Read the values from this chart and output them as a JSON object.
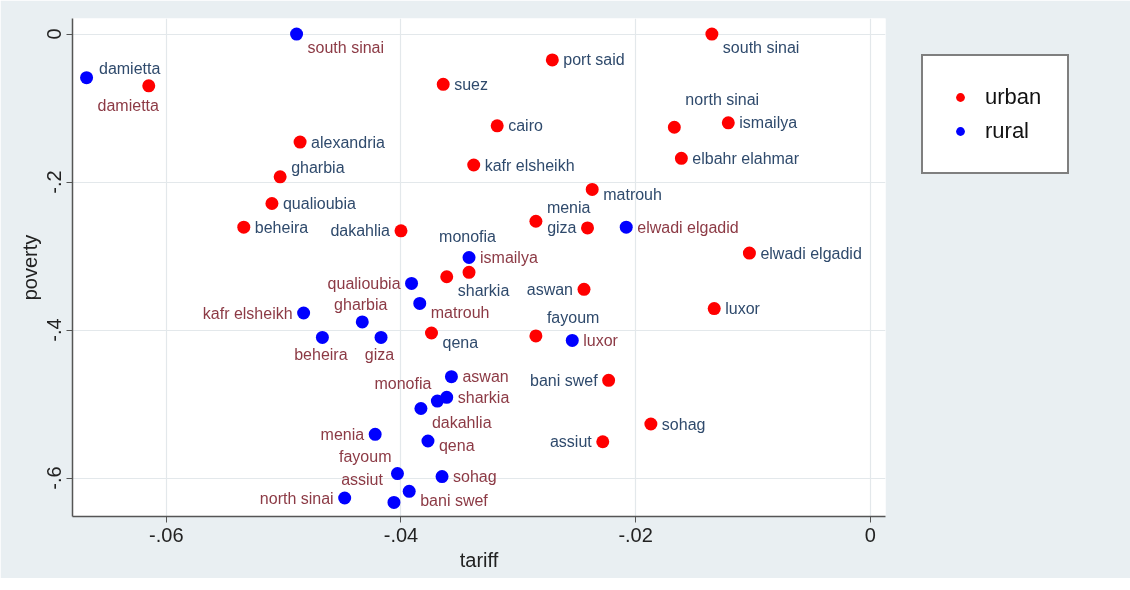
{
  "chart_data": {
    "type": "scatter",
    "xlabel": "tariff",
    "ylabel": "poverty",
    "xlim": [
      -0.068,
      0.0013
    ],
    "ylim": [
      -0.652,
      0.021
    ],
    "xticks": [
      {
        "value": -0.06,
        "label": "-.06"
      },
      {
        "value": -0.04,
        "label": "-.04"
      },
      {
        "value": -0.02,
        "label": "-.02"
      },
      0
    ],
    "yticks": [
      {
        "value": -0.6,
        "label": "-.6"
      },
      {
        "value": -0.4,
        "label": "-.4"
      },
      {
        "value": -0.2,
        "label": "-.2"
      },
      0
    ],
    "grid": true,
    "legend": "right",
    "marker": "circle",
    "series": [
      {
        "name": "urban",
        "color": "#ff0000",
        "x": [
          -0.0318,
          -0.0486,
          -0.0271,
          -0.0364,
          -0.0615,
          -0.04,
          -0.0361,
          -0.051,
          -0.0338,
          -0.0503,
          -0.0342,
          -0.0534,
          -0.0121,
          -0.0241,
          -0.0223,
          -0.0285,
          -0.0285,
          -0.0228,
          -0.0187,
          -0.0374,
          -0.0244,
          -0.0133,
          -0.0161,
          -0.0103,
          -0.0237,
          -0.0167,
          -0.0135
        ],
        "values": [
          -0.124,
          -0.146,
          -0.035,
          -0.068,
          -0.07,
          -0.266,
          -0.328,
          -0.229,
          -0.177,
          -0.193,
          -0.322,
          -0.261,
          -0.12,
          -0.262,
          -0.468,
          -0.408,
          -0.253,
          -0.551,
          -0.527,
          -0.404,
          -0.345,
          -0.371,
          -0.168,
          -0.296,
          -0.21,
          -0.126,
          0.0
        ],
        "value_labels": [
          "cairo",
          "alexandria",
          "port said",
          "suez",
          "damietta",
          "dakahlia",
          "sharkia",
          "qualioubia",
          "kafr elsheikh",
          "gharbia",
          "monofia",
          "beheira",
          "ismailya",
          "giza",
          "bani swef",
          "fayoum",
          "menia",
          "assiut",
          "sohag",
          "qena",
          "aswan",
          "luxor",
          "elbahr elahmar",
          "elwadi elgadid",
          "matrouh",
          "north sinai",
          "south sinai"
        ]
      },
      {
        "name": "rural",
        "color": "#0000ff",
        "x": [
          -0.0668,
          -0.0383,
          -0.0361,
          -0.0391,
          -0.0483,
          -0.0433,
          -0.0369,
          -0.0467,
          -0.0342,
          -0.0417,
          -0.0393,
          -0.0403,
          -0.0422,
          -0.0406,
          -0.0365,
          -0.0377,
          -0.0357,
          -0.0254,
          -0.0208,
          -0.0384,
          -0.0448,
          -0.0489
        ],
        "values": [
          -0.059,
          -0.506,
          -0.491,
          -0.337,
          -0.377,
          -0.389,
          -0.496,
          -0.41,
          -0.302,
          -0.41,
          -0.618,
          -0.594,
          -0.541,
          -0.633,
          -0.598,
          -0.55,
          -0.463,
          -0.414,
          -0.261,
          -0.364,
          -0.627,
          0.0
        ],
        "value_labels": [
          "damietta",
          "dakahlia",
          "sharkia",
          "qualioubia",
          "kafr elsheikh",
          "gharbia",
          "monofia",
          "beheira",
          "ismailya",
          "giza",
          "bani swef",
          "fayoum",
          "menia",
          "assiut",
          "sohag",
          "qena",
          "aswan",
          "luxor",
          "elwadi elgadid",
          "matrouh",
          "north sinai",
          "south sinai"
        ]
      }
    ]
  }
}
